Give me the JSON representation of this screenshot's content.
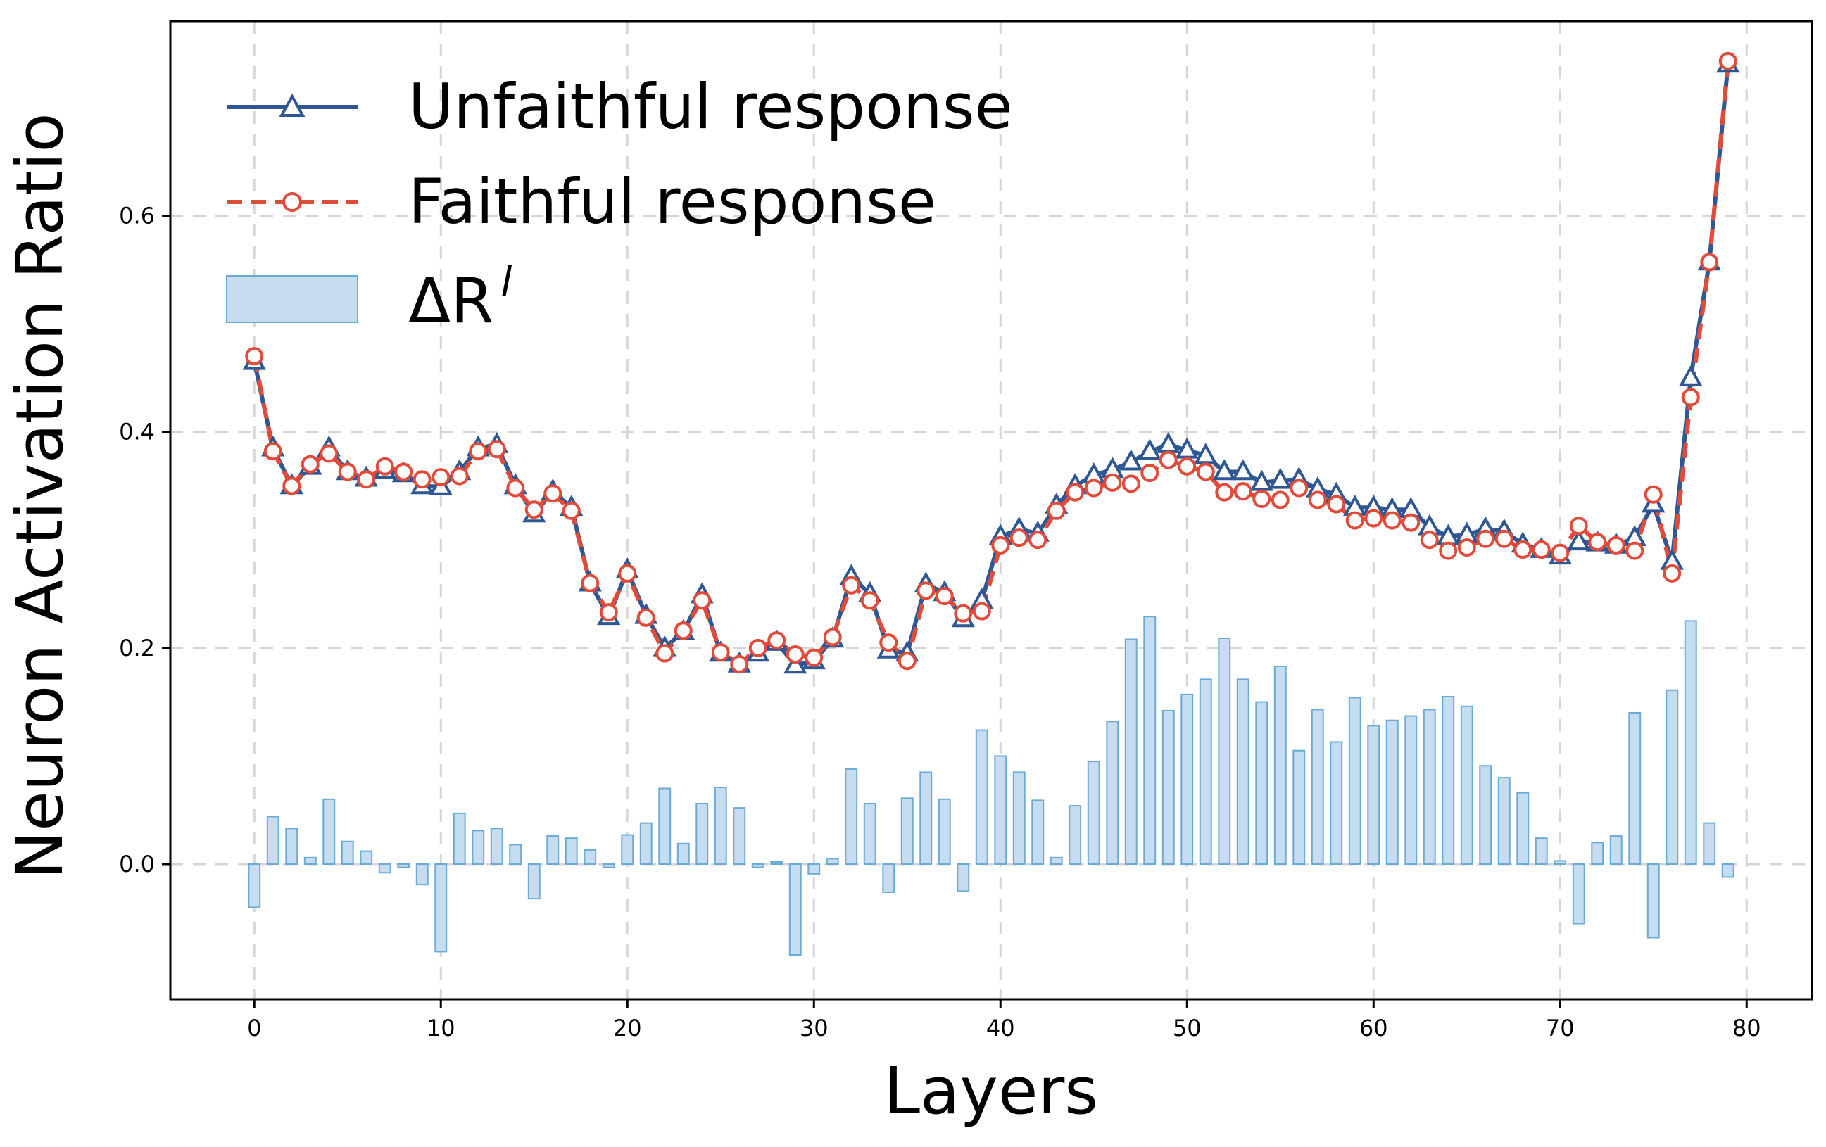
{
  "chart_data": {
    "type": "line",
    "xlabel": "Layers",
    "ylabel": "Neuron Activation Ratio",
    "xlim": [
      -4.5,
      83.5
    ],
    "ylim": [
      -0.125,
      0.78
    ],
    "x_ticks": [
      0,
      10,
      20,
      30,
      40,
      50,
      60,
      70,
      80
    ],
    "x_tick_labels": [
      "0",
      "10",
      "20",
      "30",
      "40",
      "50",
      "60",
      "70",
      "80"
    ],
    "y_ticks": [
      0.0,
      0.2,
      0.4,
      0.6
    ],
    "y_tick_labels": [
      "0.0",
      "0.2",
      "0.4",
      "0.6"
    ],
    "grid": "dashed",
    "legend_position": "upper-left",
    "legend": {
      "unfaithful": "Unfaithful response",
      "faithful": "Faithful response",
      "delta_main": "ΔR",
      "delta_sup": "l"
    },
    "x": [
      0,
      1,
      2,
      3,
      4,
      5,
      6,
      7,
      8,
      9,
      10,
      11,
      12,
      13,
      14,
      15,
      16,
      17,
      18,
      19,
      20,
      21,
      22,
      23,
      24,
      25,
      26,
      27,
      28,
      29,
      30,
      31,
      32,
      33,
      34,
      35,
      36,
      37,
      38,
      39,
      40,
      41,
      42,
      43,
      44,
      45,
      46,
      47,
      48,
      49,
      50,
      51,
      52,
      53,
      54,
      55,
      56,
      57,
      58,
      59,
      60,
      61,
      62,
      63,
      64,
      65,
      66,
      67,
      68,
      69,
      70,
      71,
      72,
      73,
      74,
      75,
      76,
      77,
      78,
      79
    ],
    "series": [
      {
        "name": "Unfaithful response",
        "color": "#2e5794",
        "marker": "triangle",
        "values": [
          0.465,
          0.385,
          0.35,
          0.368,
          0.385,
          0.363,
          0.357,
          0.364,
          0.361,
          0.35,
          0.349,
          0.363,
          0.385,
          0.388,
          0.35,
          0.324,
          0.345,
          0.33,
          0.26,
          0.229,
          0.272,
          0.23,
          0.2,
          0.215,
          0.249,
          0.195,
          0.185,
          0.195,
          0.205,
          0.184,
          0.188,
          0.208,
          0.266,
          0.25,
          0.198,
          0.195,
          0.259,
          0.251,
          0.227,
          0.244,
          0.303,
          0.31,
          0.306,
          0.332,
          0.35,
          0.36,
          0.365,
          0.372,
          0.382,
          0.388,
          0.383,
          0.378,
          0.363,
          0.363,
          0.353,
          0.355,
          0.356,
          0.347,
          0.342,
          0.33,
          0.33,
          0.328,
          0.328,
          0.312,
          0.303,
          0.305,
          0.31,
          0.308,
          0.296,
          0.291,
          0.285,
          0.298,
          0.297,
          0.295,
          0.302,
          0.333,
          0.28,
          0.45,
          0.557,
          0.74
        ]
      },
      {
        "name": "Faithful response",
        "color": "#e04b3a",
        "marker": "circle",
        "values": [
          0.47,
          0.382,
          0.35,
          0.37,
          0.38,
          0.363,
          0.356,
          0.368,
          0.363,
          0.356,
          0.358,
          0.359,
          0.382,
          0.384,
          0.348,
          0.328,
          0.343,
          0.327,
          0.26,
          0.233,
          0.269,
          0.228,
          0.195,
          0.216,
          0.244,
          0.196,
          0.185,
          0.2,
          0.207,
          0.194,
          0.191,
          0.21,
          0.258,
          0.244,
          0.205,
          0.188,
          0.253,
          0.248,
          0.232,
          0.234,
          0.295,
          0.302,
          0.3,
          0.327,
          0.344,
          0.348,
          0.353,
          0.352,
          0.362,
          0.374,
          0.368,
          0.363,
          0.344,
          0.345,
          0.338,
          0.337,
          0.348,
          0.337,
          0.333,
          0.318,
          0.32,
          0.318,
          0.316,
          0.3,
          0.29,
          0.293,
          0.301,
          0.301,
          0.291,
          0.291,
          0.288,
          0.313,
          0.298,
          0.295,
          0.29,
          0.342,
          0.269,
          0.432,
          0.557,
          0.743
        ]
      },
      {
        "name": "ΔR^l",
        "type": "bar",
        "color": "#c6dcf0",
        "edge_color": "#6aaad4",
        "values": [
          -0.04,
          0.044,
          0.033,
          0.006,
          0.06,
          0.021,
          0.012,
          -0.008,
          -0.003,
          -0.019,
          -0.081,
          0.047,
          0.031,
          0.033,
          0.018,
          -0.032,
          0.026,
          0.024,
          0.013,
          -0.003,
          0.027,
          0.038,
          0.07,
          0.019,
          0.056,
          0.071,
          0.052,
          -0.003,
          0.002,
          -0.084,
          -0.009,
          0.005,
          0.088,
          0.056,
          -0.026,
          0.061,
          0.085,
          0.06,
          -0.025,
          0.124,
          0.1,
          0.085,
          0.059,
          0.006,
          0.054,
          0.095,
          0.132,
          0.208,
          0.229,
          0.142,
          0.157,
          0.171,
          0.209,
          0.171,
          0.15,
          0.183,
          0.105,
          0.143,
          0.113,
          0.154,
          0.128,
          0.133,
          0.137,
          0.143,
          0.155,
          0.146,
          0.091,
          0.08,
          0.066,
          0.024,
          0.003,
          -0.055,
          0.02,
          0.026,
          0.14,
          -0.068,
          0.161,
          0.225,
          0.038,
          -0.012
        ]
      }
    ]
  }
}
